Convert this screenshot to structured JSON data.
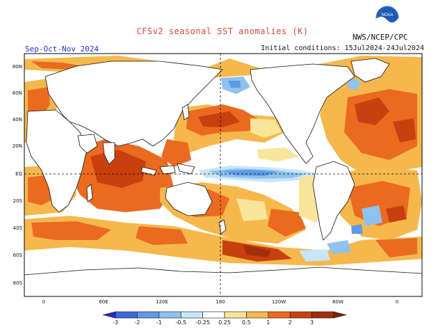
{
  "header": {
    "title": "CFSv2 seasonal SST anomalies (K)",
    "season": "Sep-Oct-Nov 2024",
    "initial_conditions": "Initial conditions: 15Jul2024-24Jul2024",
    "agency": "NWS/NCEP/CPC",
    "logo_text": "NOAA"
  },
  "map": {
    "lat_labels": [
      "80N",
      "60N",
      "40N",
      "20N",
      "EQ",
      "20S",
      "40S",
      "60S",
      "80S"
    ],
    "lon_labels": [
      "0",
      "60E",
      "120E",
      "180",
      "120W",
      "60W",
      "0"
    ]
  },
  "colorbar": {
    "tick_labels": [
      "-3",
      "-2",
      "-1",
      "-0.5",
      "-0.25",
      "0.25",
      "0.5",
      "1",
      "2",
      "3"
    ],
    "colors": [
      "#2a2ac8",
      "#3a6ad8",
      "#5e9ae6",
      "#8ec2ef",
      "#c8e6f7",
      "#ffffff",
      "#f7e59a",
      "#f6b84c",
      "#ea6a20",
      "#c8400e",
      "#a0300a",
      "#7a2508"
    ]
  }
}
